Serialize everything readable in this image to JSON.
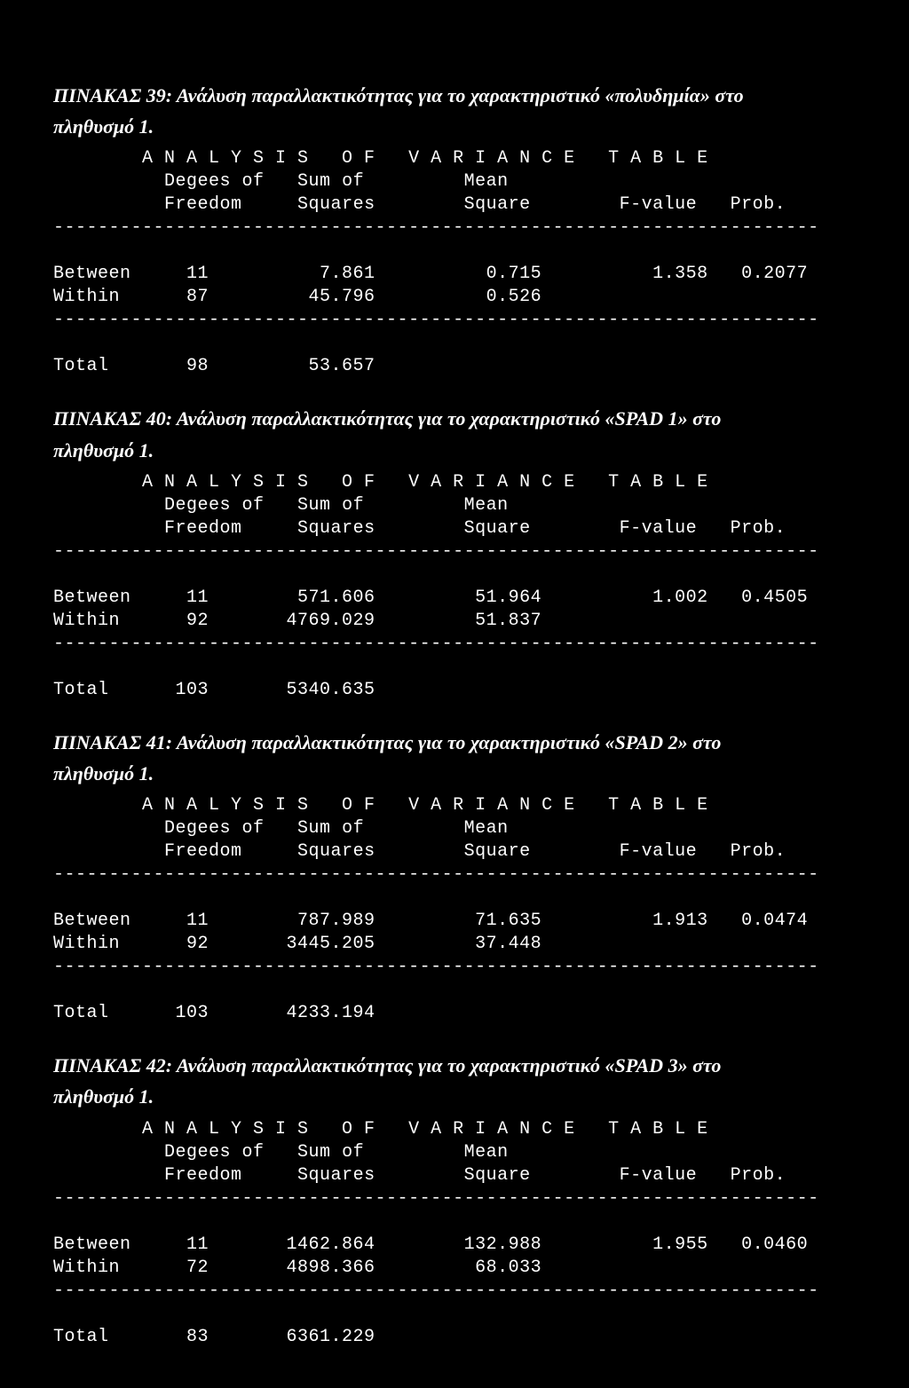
{
  "tables": [
    {
      "title_line1": "ΠΙΝΑΚΑΣ 39: Ανάλυση παραλλακτικότητας για το χαρακτηριστικό «πολυδημία» στο",
      "title_line2": "πληθυσμό 1.",
      "header1": "A N A L Y S I S   O F   V A R I A N C E   T A B L E",
      "header2": "Degees of   Sum of         Mean",
      "header3": "Freedom     Squares        Square        F-value   Prob.",
      "sep": "---------------------------------------------------------------------",
      "row_between": "Between     11          7.861          0.715          1.358   0.2077",
      "row_within": "Within      87         45.796          0.526",
      "row_total": "Total       98         53.657",
      "between": {
        "df": 11,
        "ss": 7.861,
        "ms": 0.715,
        "f": 1.358,
        "p": 0.2077
      },
      "within": {
        "df": 87,
        "ss": 45.796,
        "ms": 0.526
      },
      "total": {
        "df": 98,
        "ss": 53.657
      }
    },
    {
      "title_line1": "ΠΙΝΑΚΑΣ 40: Ανάλυση παραλλακτικότητας για το χαρακτηριστικό «SPAD 1» στο",
      "title_line2": "πληθυσμό 1.",
      "header1": "A N A L Y S I S   O F   V A R I A N C E   T A B L E",
      "header2": "Degees of   Sum of         Mean",
      "header3": "Freedom     Squares        Square        F-value   Prob.",
      "sep": "---------------------------------------------------------------------",
      "row_between": "Between     11        571.606         51.964          1.002   0.4505",
      "row_within": "Within      92       4769.029         51.837",
      "row_total": "Total      103       5340.635",
      "between": {
        "df": 11,
        "ss": 571.606,
        "ms": 51.964,
        "f": 1.002,
        "p": 0.4505
      },
      "within": {
        "df": 92,
        "ss": 4769.029,
        "ms": 51.837
      },
      "total": {
        "df": 103,
        "ss": 5340.635
      }
    },
    {
      "title_line1": "ΠΙΝΑΚΑΣ 41: Ανάλυση παραλλακτικότητας για το χαρακτηριστικό «SPAD 2» στο",
      "title_line2": "πληθυσμό 1.",
      "header1": "A N A L Y S I S   O F   V A R I A N C E   T A B L E",
      "header2": "Degees of   Sum of         Mean",
      "header3": "Freedom     Squares        Square        F-value   Prob.",
      "sep": "---------------------------------------------------------------------",
      "row_between": "Between     11        787.989         71.635          1.913   0.0474",
      "row_within": "Within      92       3445.205         37.448",
      "row_total": "Total      103       4233.194",
      "between": {
        "df": 11,
        "ss": 787.989,
        "ms": 71.635,
        "f": 1.913,
        "p": 0.0474
      },
      "within": {
        "df": 92,
        "ss": 3445.205,
        "ms": 37.448
      },
      "total": {
        "df": 103,
        "ss": 4233.194
      }
    },
    {
      "title_line1": "ΠΙΝΑΚΑΣ 42: Ανάλυση παραλλακτικότητας για το χαρακτηριστικό «SPAD 3» στο",
      "title_line2": "πληθυσμό 1.",
      "header1": "A N A L Y S I S   O F   V A R I A N C E   T A B L E",
      "header2": "Degees of   Sum of         Mean",
      "header3": "Freedom     Squares        Square        F-value   Prob.",
      "sep": "---------------------------------------------------------------------",
      "row_between": "Between     11       1462.864        132.988          1.955   0.0460",
      "row_within": "Within      72       4898.366         68.033",
      "row_total": "Total       83       6361.229",
      "between": {
        "df": 11,
        "ss": 1462.864,
        "ms": 132.988,
        "f": 1.955,
        "p": 0.046
      },
      "within": {
        "df": 72,
        "ss": 4898.366,
        "ms": 68.033
      },
      "total": {
        "df": 83,
        "ss": 6361.229
      }
    }
  ],
  "colors": {
    "background": "#000000",
    "text": "#ffffff"
  },
  "fonts": {
    "title_family": "Times New Roman",
    "title_style": "italic bold",
    "title_size_pt": 16,
    "mono_family": "Courier New",
    "mono_size_pt": 14
  }
}
